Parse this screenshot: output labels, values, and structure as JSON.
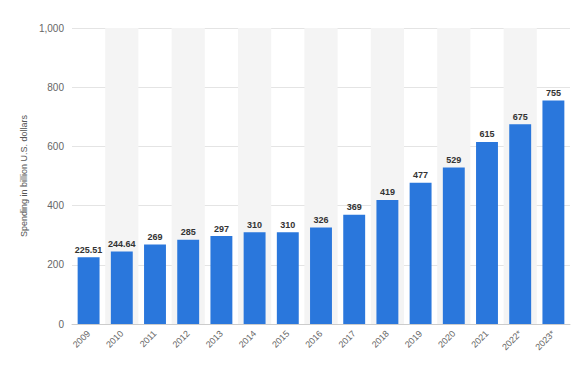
{
  "chart_data": {
    "type": "bar",
    "y_label": "Spending in billion U.S. dollars",
    "categories": [
      "2009",
      "2010",
      "2011",
      "2012",
      "2013",
      "2014",
      "2015",
      "2016",
      "2017",
      "2018",
      "2019",
      "2020",
      "2021",
      "2022*",
      "2023*"
    ],
    "values": [
      225.51,
      244.64,
      269,
      285,
      297,
      310,
      310,
      326,
      369,
      419,
      477,
      529,
      615,
      675,
      755
    ],
    "color": "#2a77dc",
    "ylim": [
      0,
      1000
    ],
    "yticks": [
      0,
      200,
      400,
      600,
      800,
      {
        "value": 1000,
        "label": "1,000"
      }
    ],
    "grid": true,
    "data_labels": true
  }
}
